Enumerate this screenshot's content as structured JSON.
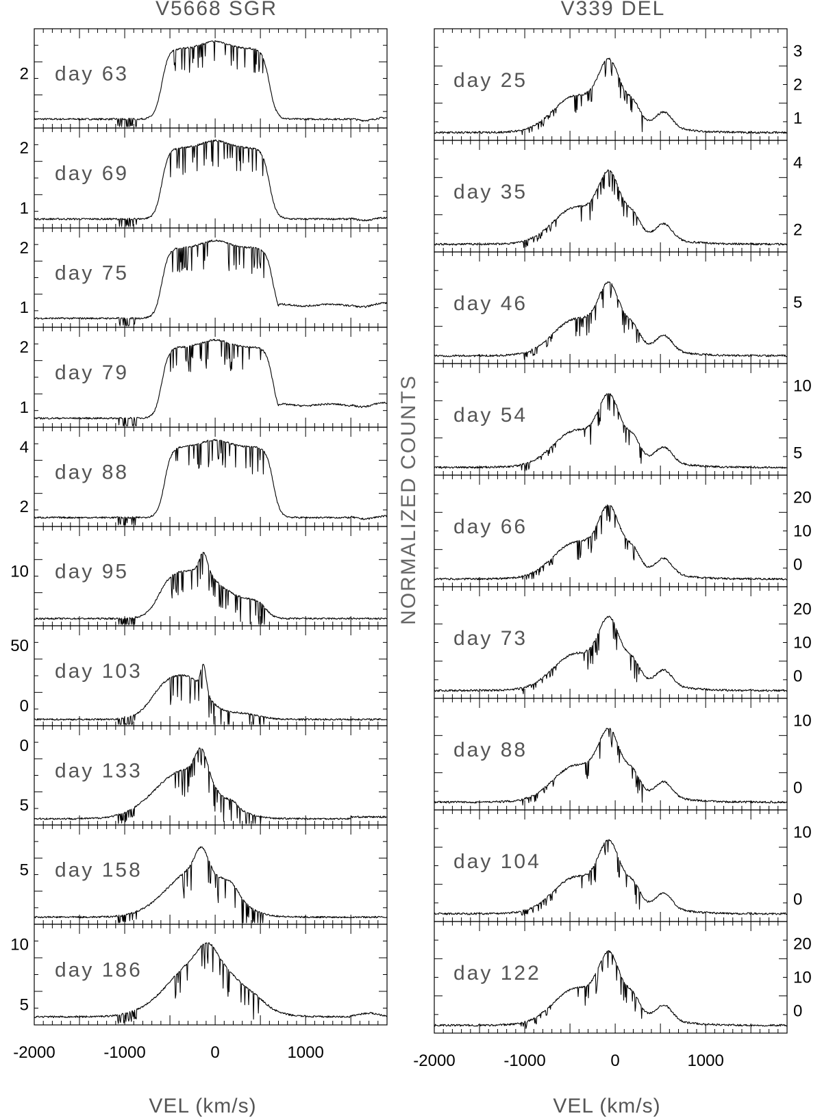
{
  "chart_data": [
    {
      "type": "line",
      "title": "V5668 SGR",
      "xlabel": "VEL (km/s)",
      "ylabel": "",
      "xlim": [
        -2000,
        1900
      ],
      "x_ticks": [
        "-2000",
        "-1000",
        "0",
        "1000"
      ],
      "y_tick_side": "left",
      "panels": [
        {
          "label": "day 63",
          "profile": "flat",
          "ylim": [
            1.1,
            2.9
          ],
          "ytick_labels": [
            "2"
          ]
        },
        {
          "label": "day 69",
          "profile": "flat",
          "ylim": [
            0.75,
            2.95
          ],
          "ytick_labels": [
            "2",
            "1"
          ]
        },
        {
          "label": "day 75",
          "profile": "flat2",
          "ylim": [
            0.7,
            2.5
          ],
          "ytick_labels": [
            "2",
            "1"
          ]
        },
        {
          "label": "day 79",
          "profile": "flat2",
          "ylim": [
            0.6,
            2.4
          ],
          "ytick_labels": [
            "2",
            "1"
          ]
        },
        {
          "label": "day 88",
          "profile": "flat3",
          "ylim": [
            0.8,
            5.0
          ],
          "ytick_labels": [
            "4",
            "2"
          ]
        },
        {
          "label": "day 95",
          "profile": "mid",
          "ylim": [
            3,
            19
          ],
          "ytick_labels": [
            "10"
          ]
        },
        {
          "label": "day 103",
          "profile": "spike",
          "ylim": [
            -2,
            52
          ],
          "ytick_labels": [
            "50",
            "0"
          ]
        },
        {
          "label": "day 133",
          "profile": "late",
          "ylim": [
            0,
            9.5
          ],
          "ytick_labels": [
            "0",
            "5"
          ]
        },
        {
          "label": "day 158",
          "profile": "late2",
          "ylim": [
            0.5,
            9.0
          ],
          "ytick_labels": [
            "5"
          ]
        },
        {
          "label": "day 186",
          "profile": "late3",
          "ylim": [
            0.5,
            12.0
          ],
          "ytick_labels": [
            "10",
            "5"
          ]
        }
      ]
    },
    {
      "type": "line",
      "title": "V339 DEL",
      "xlabel": "VEL (km/s)",
      "ylabel": "NORMALIZED COUNTS",
      "xlim": [
        -2000,
        1900
      ],
      "x_ticks": [
        "-2000",
        "-1000",
        "0",
        "1000"
      ],
      "y_tick_side": "right",
      "panels": [
        {
          "label": "day 25",
          "ytick_labels": [
            "3",
            "2",
            "1"
          ]
        },
        {
          "label": "day 35",
          "ytick_labels": [
            "4",
            "2"
          ]
        },
        {
          "label": "day 46",
          "ytick_labels": [
            "5"
          ]
        },
        {
          "label": "day 54",
          "ytick_labels": [
            "10",
            "5"
          ]
        },
        {
          "label": "day 66",
          "ytick_labels": [
            "20",
            "10",
            "0"
          ]
        },
        {
          "label": "day 73",
          "ytick_labels": [
            "20",
            "10",
            "0"
          ]
        },
        {
          "label": "day 88",
          "ytick_labels": [
            "10",
            "0"
          ]
        },
        {
          "label": "day 104",
          "ytick_labels": [
            "10",
            "0"
          ]
        },
        {
          "label": "day 122",
          "ytick_labels": [
            "20",
            "10",
            "0"
          ]
        }
      ]
    }
  ]
}
